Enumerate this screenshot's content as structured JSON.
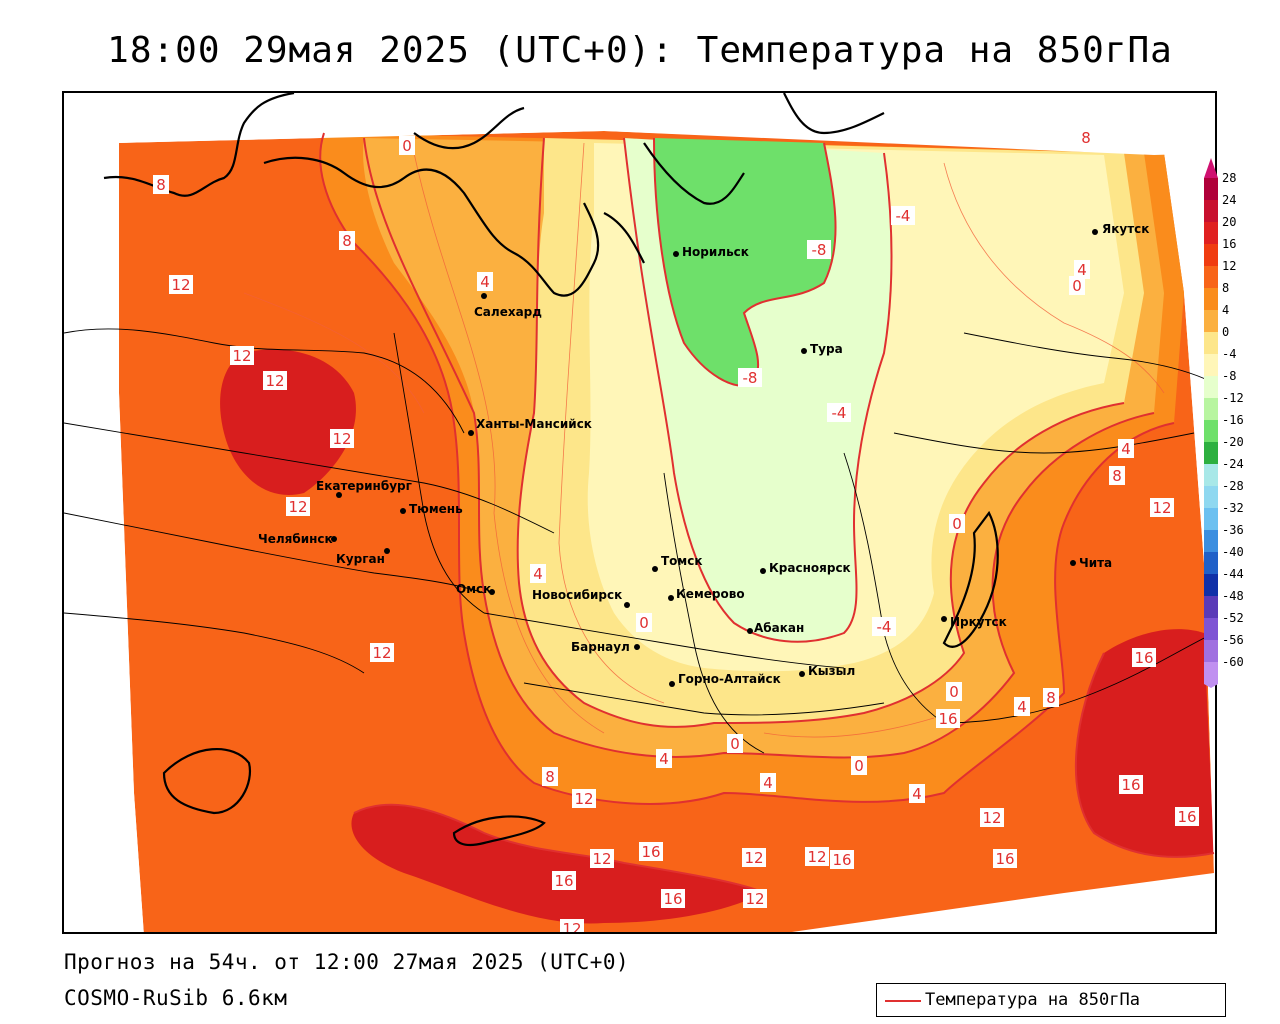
{
  "title": "18:00 29мая 2025 (UTC+0): Температура на 850гПа",
  "footer": {
    "forecast": "Прогноз на 54ч. от 12:00 27мая 2025 (UTC+0)",
    "model": "COSMO-RuSib 6.6км"
  },
  "legend": {
    "label": "Температура на 850гПа",
    "line_color": "#e03030"
  },
  "colorbar": {
    "labels": [
      "28",
      "24",
      "20",
      "16",
      "12",
      "8",
      "4",
      "0",
      "-4",
      "-8",
      "-12",
      "-16",
      "-20",
      "-24",
      "-28",
      "-32",
      "-36",
      "-40",
      "-44",
      "-48",
      "-52",
      "-56",
      "-60"
    ],
    "colors": [
      "#b0003a",
      "#c8102e",
      "#e02020",
      "#f03c10",
      "#f86418",
      "#fa8c1c",
      "#fbb040",
      "#fde68a",
      "#fff6b8",
      "#e6ffcc",
      "#b8f5a0",
      "#6ee06a",
      "#2db040",
      "#a8e8e8",
      "#8fd8f0",
      "#6cc0f0",
      "#3c8ee0",
      "#2060c8",
      "#1030a8",
      "#5a3ab8",
      "#7e54d4",
      "#a070e0",
      "#c090f0"
    ]
  },
  "cities": [
    {
      "name": "Салехард"
    },
    {
      "name": "Норильск"
    },
    {
      "name": "Якутск"
    },
    {
      "name": "Тура"
    },
    {
      "name": "Ханты-Мансийск"
    },
    {
      "name": "Екатеринбург"
    },
    {
      "name": "Тюмень"
    },
    {
      "name": "Челябинск"
    },
    {
      "name": "Курган"
    },
    {
      "name": "Омск"
    },
    {
      "name": "Новосибирск"
    },
    {
      "name": "Томск"
    },
    {
      "name": "Кемерово"
    },
    {
      "name": "Красноярск"
    },
    {
      "name": "Абакан"
    },
    {
      "name": "Барнаул"
    },
    {
      "name": "Горно-Алтайск"
    },
    {
      "name": "Кызыл"
    },
    {
      "name": "Иркутск"
    },
    {
      "name": "Чита"
    }
  ],
  "isotherm_labels": [
    "0",
    "8",
    "8",
    "12",
    "12",
    "12",
    "12",
    "12",
    "12",
    "4",
    "-8",
    "-8",
    "-4",
    "-4",
    "8",
    "4",
    "0",
    "4",
    "8",
    "12",
    "4",
    "0",
    "0",
    "-4",
    "0",
    "16",
    "4",
    "8",
    "0",
    "4",
    "8",
    "12",
    "4",
    "16",
    "12",
    "16",
    "12",
    "16",
    "16",
    "12",
    "16",
    "12",
    "12",
    "16",
    "16",
    "16",
    "12",
    "0",
    "4"
  ]
}
